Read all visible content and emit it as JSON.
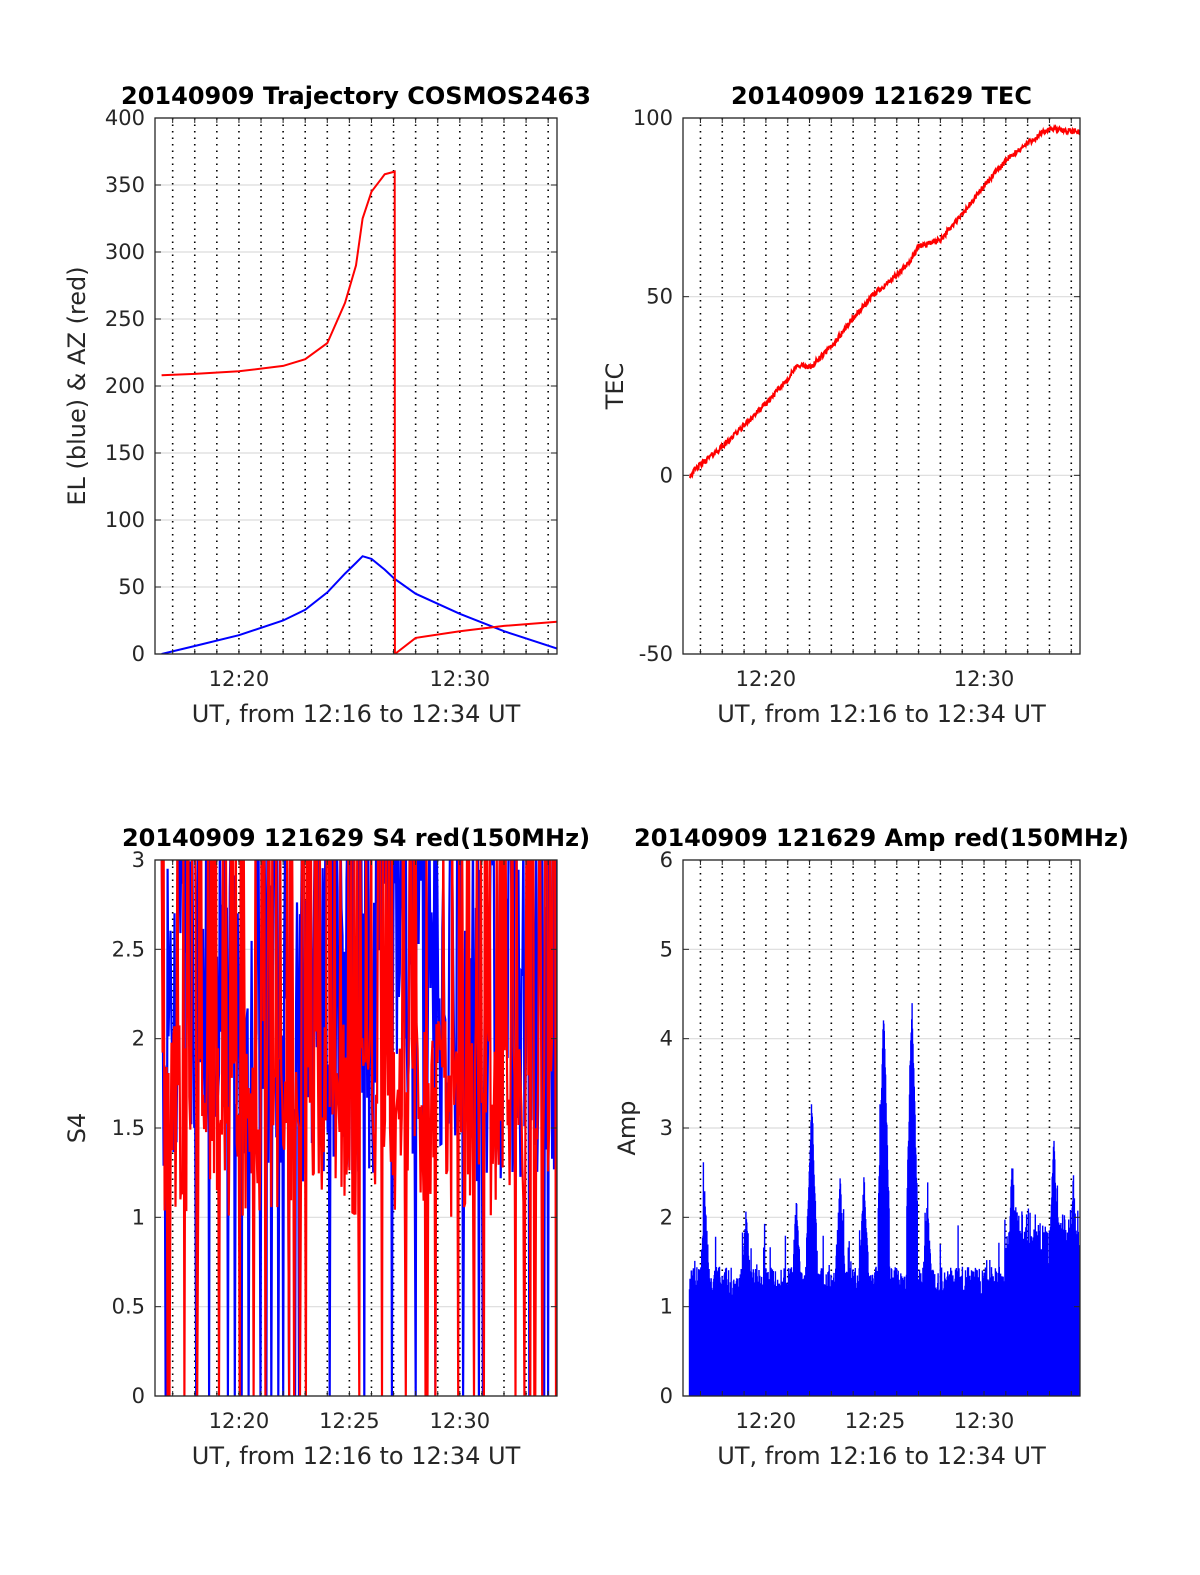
{
  "chart_data": [
    {
      "type": "line",
      "title": "20140909 Trajectory COSMOS2463",
      "xlabel": "UT, from 12:16 to 12:34 UT",
      "ylabel": "EL (blue) & AZ (red)",
      "xlim_minutes": [
        976.2,
        994.4
      ],
      "ylim": [
        0,
        400
      ],
      "yticks": [
        0,
        50,
        100,
        150,
        200,
        250,
        300,
        350,
        400
      ],
      "yticklabels": [
        "0",
        "50",
        "100",
        "150",
        "200",
        "250",
        "300",
        "350",
        "400"
      ],
      "xticks": [
        980,
        990
      ],
      "xticklabels": [
        "12:20",
        "12:30"
      ],
      "grid": true,
      "x_minutes": [
        976.5,
        978,
        980,
        982,
        983,
        984,
        984.8,
        985.3,
        985.6,
        986,
        986.6,
        987.05,
        987.06,
        988,
        990,
        992,
        994.4
      ],
      "series": [
        {
          "color": "#0000ff",
          "values": [
            0,
            6,
            14,
            25,
            33,
            46,
            60,
            68,
            73,
            71,
            63,
            56,
            56,
            45,
            30,
            17,
            4
          ]
        },
        {
          "color": "#ff0000",
          "values": [
            208,
            209,
            211,
            215,
            220,
            232,
            262,
            290,
            325,
            345,
            358,
            360,
            0,
            12,
            17,
            21,
            24
          ]
        }
      ]
    },
    {
      "type": "line",
      "title": "20140909 121629 TEC",
      "xlabel": "UT, from 12:16 to 12:34 UT",
      "ylabel": "TEC",
      "xlim_minutes": [
        976.2,
        994.4
      ],
      "ylim": [
        -50,
        100
      ],
      "yticks": [
        -50,
        0,
        50,
        100
      ],
      "yticklabels": [
        "-50",
        "0",
        "50",
        "100"
      ],
      "xticks": [
        980,
        990
      ],
      "xticklabels": [
        "12:20",
        "12:30"
      ],
      "grid": true,
      "x_minutes": [
        976.5,
        977,
        978,
        979,
        980,
        981,
        981.5,
        982,
        983,
        984,
        985,
        986,
        986.5,
        987,
        988,
        989,
        990,
        991,
        992,
        993,
        994.4
      ],
      "series": [
        {
          "color": "#ff0000",
          "values": [
            0,
            3,
            8,
            14,
            20,
            27,
            31,
            30,
            36,
            44,
            51,
            56,
            59,
            64,
            66,
            73,
            81,
            88,
            93,
            97,
            96
          ]
        }
      ]
    },
    {
      "type": "line",
      "title": "20140909 121629 S4 red(150MHz)",
      "xlabel": "UT, from 12:16 to 12:34 UT",
      "ylabel": "S4",
      "xlim_minutes": [
        976.2,
        994.4
      ],
      "ylim": [
        0,
        3
      ],
      "yticks": [
        0,
        0.5,
        1,
        1.5,
        2,
        2.5,
        3
      ],
      "yticklabels": [
        "0",
        "0.5",
        "1",
        "1.5",
        "2",
        "2.5",
        "3"
      ],
      "xticks": [
        980,
        985,
        990
      ],
      "xticklabels": [
        "12:20",
        "12:25",
        "12:30"
      ],
      "grid": true,
      "series": [
        {
          "color": "#0000ff",
          "values_range": [
            0,
            3
          ],
          "typical": [
            1.2,
            3
          ],
          "note_samples": 400
        },
        {
          "color": "#ff0000",
          "values_range": [
            0,
            3
          ],
          "typical": [
            1,
            2
          ],
          "note_samples": 400
        }
      ]
    },
    {
      "type": "bar",
      "title": "20140909 121629 Amp red(150MHz)",
      "xlabel": "UT, from 12:16 to 12:34 UT",
      "ylabel": "Amp",
      "xlim_minutes": [
        976.2,
        994.4
      ],
      "ylim": [
        0,
        6
      ],
      "yticks": [
        0,
        1,
        2,
        3,
        4,
        5,
        6
      ],
      "yticklabels": [
        "0",
        "1",
        "2",
        "3",
        "4",
        "5",
        "6"
      ],
      "xticks": [
        980,
        985,
        990
      ],
      "xticklabels": [
        "12:20",
        "12:25",
        "12:30"
      ],
      "grid": true,
      "peaks": [
        {
          "x_minute": 977.2,
          "value": 2.15
        },
        {
          "x_minute": 979.1,
          "value": 2.0
        },
        {
          "x_minute": 981.4,
          "value": 2.05
        },
        {
          "x_minute": 982.1,
          "value": 3.2
        },
        {
          "x_minute": 983.4,
          "value": 2.3
        },
        {
          "x_minute": 984.5,
          "value": 2.3
        },
        {
          "x_minute": 985.4,
          "value": 4.25
        },
        {
          "x_minute": 986.7,
          "value": 4.3
        },
        {
          "x_minute": 987.4,
          "value": 2.05
        },
        {
          "x_minute": 991.3,
          "value": 2.5
        },
        {
          "x_minute": 993.2,
          "value": 2.75
        },
        {
          "x_minute": 994.1,
          "value": 2.3
        }
      ],
      "series": [
        {
          "color": "#0000ff"
        }
      ]
    }
  ]
}
